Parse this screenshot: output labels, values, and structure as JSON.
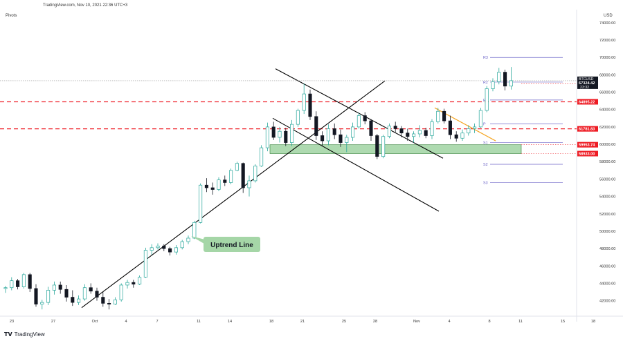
{
  "header": {
    "source_line": "TradingView.com, Nov 10, 2021 22:36 UTC+3",
    "indicator": "Pivots",
    "currency": "USD"
  },
  "footer": {
    "brand": "TradingView"
  },
  "chart_data": {
    "type": "candlestick",
    "symbol": "BTCUSD",
    "price_axis": {
      "ticks": [
        42000,
        44000,
        46000,
        48000,
        50000,
        52000,
        54000,
        56000,
        58000,
        60000,
        62000,
        64000,
        66000,
        68000,
        70000,
        72000,
        74000
      ],
      "tick_labels": [
        "42000.00",
        "44000.00",
        "46000.00",
        "48000.00",
        "50000.00",
        "52000.00",
        "54000.00",
        "56000.00",
        "58000.00",
        "60000.00",
        "62000.00",
        "64000.00",
        "66000.00",
        "68000.00",
        "70000.00",
        "72000.00",
        "74000.00"
      ],
      "range": [
        40300,
        75500
      ]
    },
    "time_axis": {
      "labels": [
        "23",
        "27",
        "Oct",
        "4",
        "7",
        "11",
        "14",
        "18",
        "21",
        "25",
        "28",
        "Nov",
        "4",
        "8",
        "11",
        "15",
        "18"
      ]
    },
    "candles": [
      [
        43400,
        43700,
        42900,
        43500
      ],
      [
        43500,
        44700,
        43200,
        44300
      ],
      [
        44300,
        44500,
        43300,
        43600
      ],
      [
        43600,
        45200,
        43400,
        45000
      ],
      [
        45000,
        45200,
        43000,
        43400
      ],
      [
        43400,
        43900,
        41300,
        41600
      ],
      [
        41600,
        42100,
        41000,
        41800
      ],
      [
        41800,
        43600,
        41500,
        43200
      ],
      [
        43200,
        44200,
        42700,
        43800
      ],
      [
        43800,
        44200,
        42800,
        43300
      ],
      [
        43300,
        43800,
        41900,
        42400
      ],
      [
        42400,
        43200,
        41400,
        41800
      ],
      [
        41800,
        42600,
        41500,
        42200
      ],
      [
        42200,
        43900,
        42000,
        43500
      ],
      [
        43500,
        44000,
        42800,
        43100
      ],
      [
        43100,
        43500,
        42000,
        42400
      ],
      [
        42400,
        43000,
        41300,
        41700
      ],
      [
        41700,
        42200,
        41000,
        41600
      ],
      [
        41600,
        42400,
        41500,
        42100
      ],
      [
        42100,
        44000,
        41900,
        43800
      ],
      [
        43800,
        44400,
        43400,
        44100
      ],
      [
        44100,
        44400,
        43500,
        43900
      ],
      [
        43900,
        44900,
        43800,
        44700
      ],
      [
        44700,
        48100,
        44600,
        47800
      ],
      [
        47800,
        48500,
        47300,
        48100
      ],
      [
        48100,
        48600,
        47900,
        48300
      ],
      [
        48300,
        48500,
        47700,
        48000
      ],
      [
        48000,
        48200,
        47200,
        47600
      ],
      [
        47600,
        48400,
        47300,
        48100
      ],
      [
        48100,
        49000,
        47900,
        48800
      ],
      [
        48800,
        49500,
        48500,
        49200
      ],
      [
        49200,
        51200,
        49100,
        51000
      ],
      [
        51000,
        55500,
        50900,
        55300
      ],
      [
        55300,
        56100,
        54500,
        55000
      ],
      [
        55000,
        55600,
        54200,
        54800
      ],
      [
        54800,
        56200,
        54600,
        55900
      ],
      [
        55900,
        56400,
        55200,
        55600
      ],
      [
        55600,
        57200,
        55400,
        57000
      ],
      [
        57000,
        58000,
        56900,
        57800
      ],
      [
        57800,
        57900,
        54400,
        55000
      ],
      [
        55000,
        56400,
        54000,
        55800
      ],
      [
        55800,
        57700,
        55600,
        57500
      ],
      [
        57500,
        59900,
        57400,
        59600
      ],
      [
        59600,
        62500,
        59200,
        62000
      ],
      [
        62000,
        62600,
        60500,
        60800
      ],
      [
        60800,
        62000,
        60200,
        61500
      ],
      [
        61500,
        61900,
        59800,
        60200
      ],
      [
        60200,
        62800,
        59800,
        62300
      ],
      [
        62300,
        64100,
        62000,
        63900
      ],
      [
        63900,
        67000,
        63500,
        65800
      ],
      [
        65800,
        66300,
        62800,
        63200
      ],
      [
        63200,
        63800,
        60500,
        61000
      ],
      [
        61000,
        61500,
        59800,
        60400
      ],
      [
        60400,
        62300,
        59900,
        61800
      ],
      [
        61800,
        62400,
        60600,
        61100
      ],
      [
        61100,
        61700,
        59700,
        60200
      ],
      [
        60200,
        61100,
        59100,
        60800
      ],
      [
        60800,
        62500,
        60400,
        62000
      ],
      [
        62000,
        63600,
        61800,
        63300
      ],
      [
        63300,
        63700,
        62300,
        62700
      ],
      [
        62700,
        62900,
        60400,
        61000
      ],
      [
        61000,
        61200,
        58300,
        58600
      ],
      [
        58600,
        61100,
        58400,
        60900
      ],
      [
        60900,
        62400,
        60700,
        62100
      ],
      [
        62100,
        62600,
        61400,
        61800
      ],
      [
        61800,
        62100,
        60800,
        61300
      ],
      [
        61300,
        61800,
        60400,
        60900
      ],
      [
        60900,
        61500,
        60200,
        61200
      ],
      [
        61200,
        62200,
        60800,
        61600
      ],
      [
        61600,
        61900,
        60700,
        61000
      ],
      [
        61000,
        62900,
        60600,
        62600
      ],
      [
        62600,
        64200,
        62400,
        63800
      ],
      [
        63800,
        64100,
        62400,
        62700
      ],
      [
        62700,
        63300,
        60600,
        61100
      ],
      [
        61100,
        61500,
        60300,
        60700
      ],
      [
        60700,
        61700,
        60400,
        61300
      ],
      [
        61300,
        62200,
        61000,
        61800
      ],
      [
        61800,
        62400,
        61300,
        62000
      ],
      [
        62000,
        64200,
        61900,
        63900
      ],
      [
        63900,
        66700,
        63700,
        66400
      ],
      [
        66400,
        67600,
        66100,
        67200
      ],
      [
        67200,
        68800,
        66900,
        68300
      ],
      [
        68300,
        68600,
        66200,
        66700
      ],
      [
        66700,
        68900,
        66300,
        67324
      ]
    ],
    "pivots": [
      {
        "label": "R3",
        "value": 70000
      },
      {
        "label": "R2",
        "value": 67160
      },
      {
        "label": "R1",
        "value": 65100
      },
      {
        "label": "P",
        "value": 62340
      },
      {
        "label": "S1",
        "value": 60200
      },
      {
        "label": "S2",
        "value": 57700
      },
      {
        "label": "S3",
        "value": 55600
      }
    ],
    "levels": [
      {
        "value": 67016.5,
        "label": "67016.50"
      },
      {
        "value": 64895.22,
        "label": "64895.22"
      },
      {
        "value": 61781.83,
        "label": "61781.83"
      },
      {
        "value": 59953.74,
        "label": "59953.74"
      },
      {
        "value": 58933.0,
        "label": "58933.00"
      }
    ],
    "support_zone": [
      58933,
      59953.74
    ],
    "current_price": {
      "value": 67324.42,
      "label": "67324.42",
      "countdown": "23:32",
      "symbol": "BTCUSD"
    },
    "annotations": [
      {
        "text": "Uptrend Line"
      }
    ],
    "colors": {
      "up": "#26a69a",
      "down": "#131722",
      "level_line": "#ee1c24",
      "level_label_bg": "#ee1c24",
      "pivot": "#6b63c7",
      "zone_fill": "#a5d6a7",
      "zone_border": "#2e7d32",
      "trend": "#000000",
      "orange_line": "#f5a623",
      "callout_bg": "#a5d6a7",
      "price_label_bg": "#131722"
    }
  }
}
